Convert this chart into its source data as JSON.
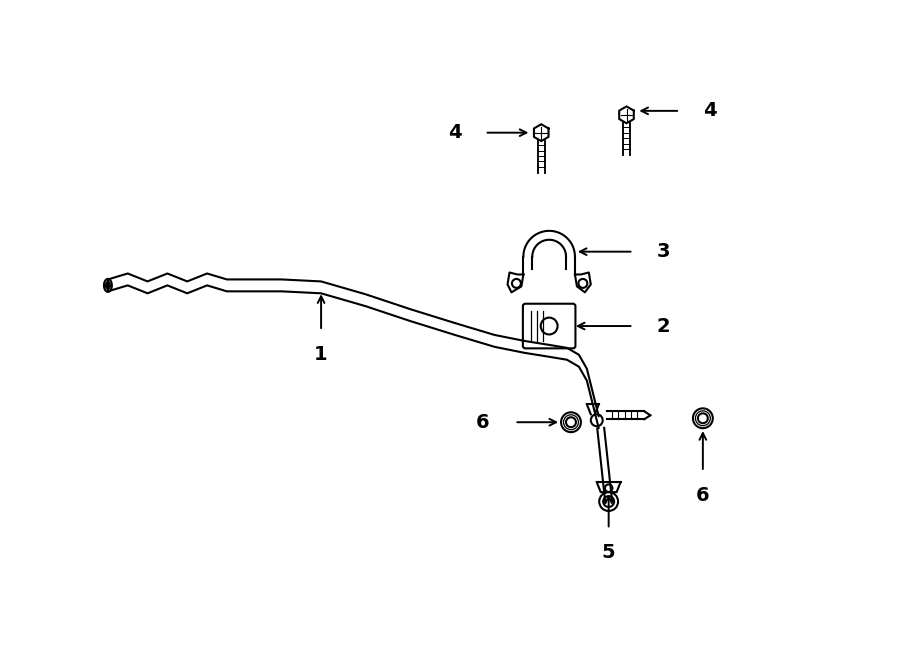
{
  "bg_color": "#ffffff",
  "line_color": "#000000",
  "line_width": 1.5,
  "fig_width": 9.0,
  "fig_height": 6.61,
  "dpi": 100
}
